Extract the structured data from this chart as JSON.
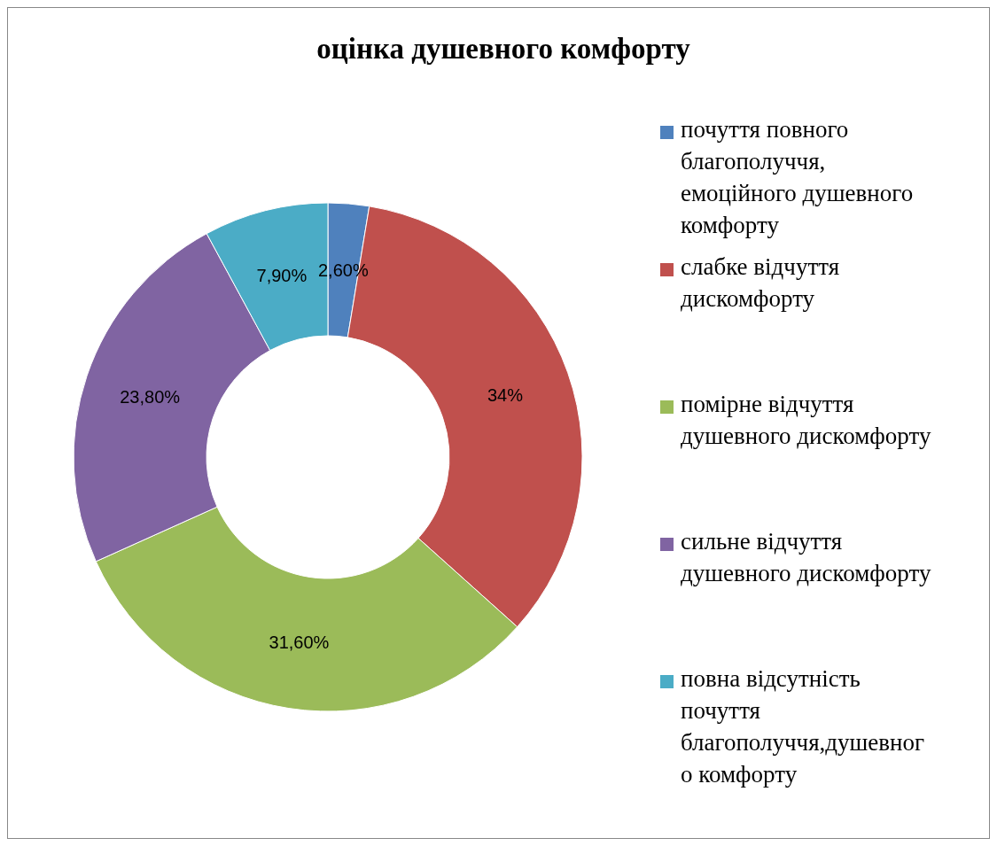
{
  "chart_data": {
    "type": "donut",
    "title": "оцінка душевного комфорту",
    "categories": [
      "почуття повного благополуччя, емоційного душевного комфорту",
      "слабке відчуття дискомфорту",
      "помірне відчуття душевного дискомфорту",
      "сильне відчуття душевного дискомфорту",
      "повна відсутність почуття благополуччя,душевного комфорту"
    ],
    "values": [
      2.6,
      34,
      31.6,
      23.8,
      7.9
    ],
    "value_labels": [
      "2,60%",
      "34%",
      "31,60%",
      "23,80%",
      "7,90%"
    ],
    "colors": [
      "#4f81bd",
      "#c0504d",
      "#9bbb59",
      "#8064a2",
      "#4bacc6"
    ],
    "legend": "right"
  }
}
